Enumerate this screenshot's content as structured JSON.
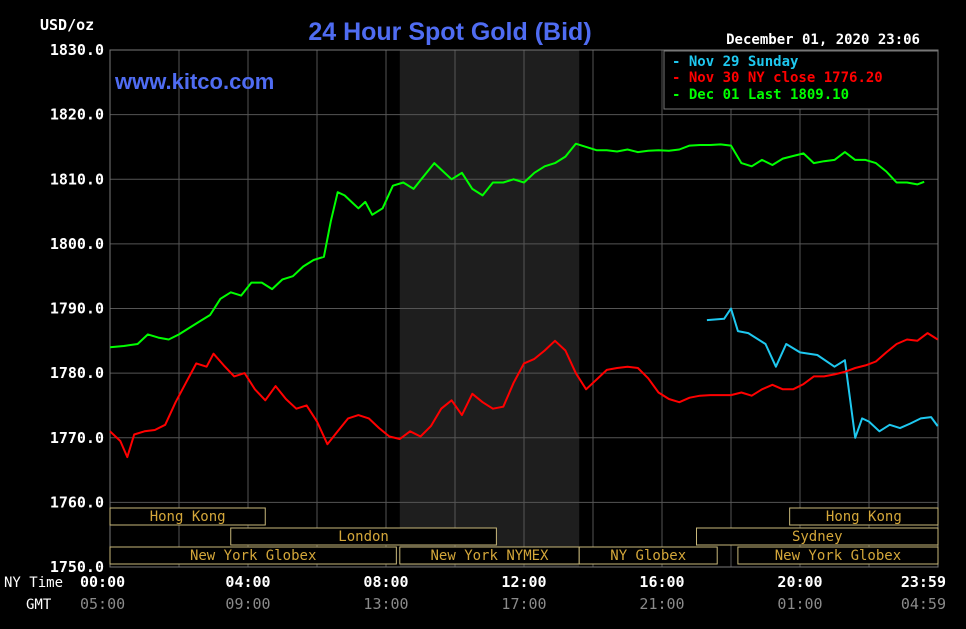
{
  "chart_data": {
    "type": "line",
    "title": "24 Hour Spot Gold (Bid)",
    "source": "www.kitco.com",
    "timestamp": "December 01, 2020 23:06",
    "ylabel": "USD/oz",
    "ylim": [
      1750,
      1830
    ],
    "yticks": [
      "1830.0",
      "1820.0",
      "1810.0",
      "1800.0",
      "1790.0",
      "1780.0",
      "1770.0",
      "1760.0",
      "1750.0"
    ],
    "xlim": [
      0,
      24
    ],
    "xticks_ny_label": "NY Time",
    "xticks_ny": [
      "00:00",
      "04:00",
      "08:00",
      "12:00",
      "16:00",
      "20:00",
      "23:59"
    ],
    "xticks_gmt_label": "GMT",
    "xticks_gmt": [
      "05:00",
      "09:00",
      "13:00",
      "17:00",
      "21:00",
      "01:00",
      "04:59"
    ],
    "grid": true,
    "legend_position": "top-right",
    "shaded_range": [
      8.4,
      13.6
    ],
    "series": [
      {
        "name": "Nov 29 Sunday",
        "color": "#1ec8f0",
        "x": [
          17.3,
          17.8,
          18.0,
          18.2,
          18.5,
          19.0,
          19.3,
          19.6,
          20.0,
          20.5,
          21.0,
          21.3,
          21.6,
          21.8,
          22.0,
          22.3,
          22.6,
          22.9,
          23.2,
          23.5,
          23.8,
          23.99
        ],
        "values": [
          1788.2,
          1788.4,
          1790.0,
          1786.5,
          1786.2,
          1784.5,
          1781.0,
          1784.5,
          1783.2,
          1782.8,
          1781.0,
          1782.0,
          1770.0,
          1773.0,
          1772.5,
          1771.0,
          1772.0,
          1771.5,
          1772.2,
          1773.0,
          1773.2,
          1771.8
        ]
      },
      {
        "name": "Nov 30 NY close",
        "value_label": "1776.20",
        "color": "#ff0000",
        "x": [
          0,
          0.3,
          0.5,
          0.7,
          1.0,
          1.3,
          1.6,
          1.9,
          2.2,
          2.5,
          2.8,
          3.0,
          3.3,
          3.6,
          3.9,
          4.2,
          4.5,
          4.8,
          5.1,
          5.4,
          5.7,
          6.0,
          6.3,
          6.6,
          6.9,
          7.2,
          7.5,
          7.8,
          8.1,
          8.4,
          8.7,
          9.0,
          9.3,
          9.6,
          9.9,
          10.2,
          10.5,
          10.8,
          11.1,
          11.4,
          11.7,
          12.0,
          12.3,
          12.6,
          12.9,
          13.2,
          13.5,
          13.8,
          14.1,
          14.4,
          14.7,
          15.0,
          15.3,
          15.6,
          15.9,
          16.2,
          16.5,
          16.8,
          17.1,
          17.4,
          17.7,
          18.0,
          18.3,
          18.6,
          18.9,
          19.2,
          19.5,
          19.8,
          20.1,
          20.4,
          20.7,
          21.0,
          21.3,
          21.6,
          21.9,
          22.2,
          22.5,
          22.8,
          23.1,
          23.4,
          23.7,
          23.99
        ],
        "values": [
          1771.0,
          1769.5,
          1767.0,
          1770.5,
          1771.0,
          1771.2,
          1772.0,
          1775.5,
          1778.5,
          1781.5,
          1781.0,
          1783.0,
          1781.2,
          1779.5,
          1780.0,
          1777.5,
          1775.8,
          1778.0,
          1776.0,
          1774.5,
          1775.0,
          1772.5,
          1769.0,
          1771.0,
          1773.0,
          1773.5,
          1773.0,
          1771.5,
          1770.2,
          1769.8,
          1771.0,
          1770.2,
          1771.8,
          1774.5,
          1775.8,
          1773.5,
          1776.8,
          1775.5,
          1774.5,
          1774.8,
          1778.5,
          1781.5,
          1782.2,
          1783.5,
          1785.0,
          1783.5,
          1780.0,
          1777.5,
          1779.0,
          1780.5,
          1780.8,
          1781.0,
          1780.8,
          1779.2,
          1777.0,
          1776.0,
          1775.5,
          1776.2,
          1776.5,
          1776.6,
          1776.6,
          1776.6,
          1777.0,
          1776.5,
          1777.5,
          1778.2,
          1777.5,
          1777.5,
          1778.3,
          1779.5,
          1779.5,
          1779.8,
          1780.2,
          1780.8,
          1781.2,
          1781.8,
          1783.2,
          1784.5,
          1785.2,
          1785.0,
          1786.2,
          1785.2
        ]
      },
      {
        "name": "Dec 01 Last",
        "value_label": "1809.10",
        "color": "#00ff00",
        "x": [
          0,
          0.4,
          0.8,
          1.1,
          1.4,
          1.7,
          2.0,
          2.3,
          2.6,
          2.9,
          3.2,
          3.5,
          3.8,
          4.1,
          4.4,
          4.7,
          5.0,
          5.3,
          5.6,
          5.9,
          6.2,
          6.4,
          6.6,
          6.8,
          7.0,
          7.2,
          7.4,
          7.6,
          7.9,
          8.2,
          8.5,
          8.8,
          9.1,
          9.4,
          9.6,
          9.9,
          10.2,
          10.5,
          10.8,
          11.1,
          11.4,
          11.7,
          12.0,
          12.3,
          12.6,
          12.9,
          13.2,
          13.5,
          13.8,
          14.1,
          14.4,
          14.7,
          15.0,
          15.3,
          15.6,
          15.9,
          16.2,
          16.5,
          16.8,
          17.1,
          17.4,
          17.7,
          18.0,
          18.3,
          18.6,
          18.9,
          19.2,
          19.5,
          19.8,
          20.1,
          20.4,
          20.7,
          21.0,
          21.3,
          21.6,
          21.9,
          22.2,
          22.5,
          22.8,
          23.1,
          23.4,
          23.6
        ],
        "values": [
          1784.0,
          1784.2,
          1784.5,
          1786.0,
          1785.5,
          1785.2,
          1786.0,
          1787.0,
          1788.0,
          1789.0,
          1791.5,
          1792.5,
          1792.0,
          1794.0,
          1794.0,
          1793.0,
          1794.5,
          1795.0,
          1796.5,
          1797.5,
          1798.0,
          1803.5,
          1808.0,
          1807.5,
          1806.5,
          1805.5,
          1806.5,
          1804.5,
          1805.5,
          1809.0,
          1809.5,
          1808.5,
          1810.5,
          1812.5,
          1811.5,
          1810.0,
          1811.0,
          1808.5,
          1807.5,
          1809.5,
          1809.5,
          1810.0,
          1809.5,
          1811.0,
          1812.0,
          1812.5,
          1813.5,
          1815.5,
          1815.0,
          1814.5,
          1814.5,
          1814.3,
          1814.6,
          1814.2,
          1814.4,
          1814.5,
          1814.4,
          1814.6,
          1815.2,
          1815.3,
          1815.3,
          1815.4,
          1815.2,
          1812.5,
          1812.0,
          1813.0,
          1812.2,
          1813.2,
          1813.6,
          1814.0,
          1812.5,
          1812.8,
          1813.0,
          1814.2,
          1813.0,
          1813.0,
          1812.5,
          1811.2,
          1809.5,
          1809.5,
          1809.2,
          1809.6
        ]
      }
    ],
    "session_bands": [
      {
        "label": "Hong Kong",
        "row": 0,
        "start": 0.0,
        "end": 4.5
      },
      {
        "label": "Hong Kong",
        "row": 0,
        "start": 19.7,
        "end": 24.0
      },
      {
        "label": "London",
        "row": 1,
        "start": 3.5,
        "end": 11.2
      },
      {
        "label": "Sydney",
        "row": 1,
        "start": 17.0,
        "end": 24.0
      },
      {
        "label": "New York Globex",
        "row": 2,
        "start": 0.0,
        "end": 8.3
      },
      {
        "label": "New York NYMEX",
        "row": 2,
        "start": 8.4,
        "end": 13.6
      },
      {
        "label": "NY Globex",
        "row": 2,
        "start": 13.6,
        "end": 17.6
      },
      {
        "label": "New York Globex",
        "row": 2,
        "start": 18.2,
        "end": 24.0
      }
    ]
  }
}
